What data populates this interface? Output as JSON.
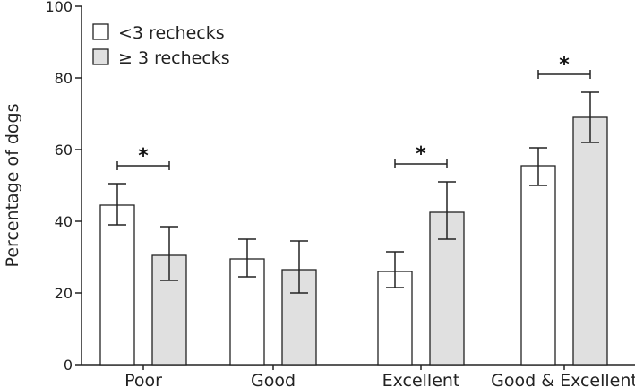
{
  "chart_data": {
    "type": "bar",
    "title": "",
    "xlabel": "",
    "ylabel": "Percentage of dogs",
    "ylim": [
      0,
      100
    ],
    "yticks": [
      0,
      20,
      40,
      60,
      80,
      100
    ],
    "categories": [
      "Poor",
      "Good",
      "Excellent",
      "Good & Excellent"
    ],
    "series": [
      {
        "name": "<3 rechecks",
        "color": "#ffffff",
        "values": [
          44.5,
          29.5,
          26,
          55.5
        ],
        "err_low": [
          39,
          24.5,
          21.5,
          50
        ],
        "err_high": [
          50.5,
          35,
          31.5,
          60.5
        ]
      },
      {
        "name": "≥ 3 rechecks",
        "color": "#e0e0e0",
        "values": [
          30.5,
          26.5,
          42.5,
          69
        ],
        "err_low": [
          23.5,
          20,
          35,
          62
        ],
        "err_high": [
          38.5,
          34.5,
          51,
          76
        ]
      }
    ],
    "significance": [
      {
        "category": "Poor",
        "label": "*"
      },
      {
        "category": "Excellent",
        "label": "*"
      },
      {
        "category": "Good & Excellent",
        "label": "*"
      }
    ],
    "legend": "top-left",
    "grid": false
  }
}
